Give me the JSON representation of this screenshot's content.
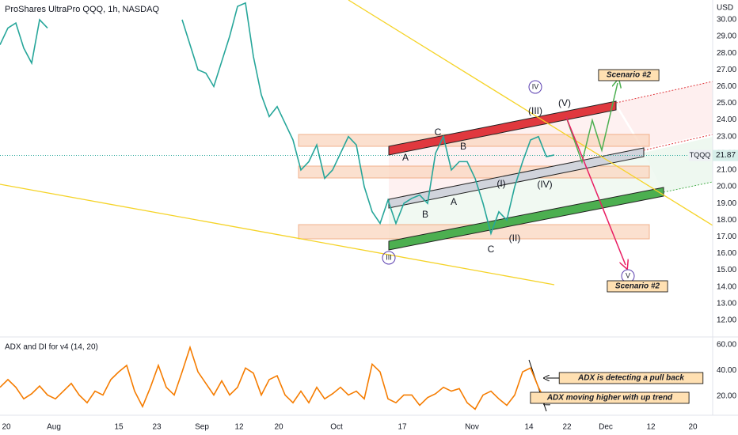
{
  "chart_data": [
    {
      "type": "line",
      "title": "ProShares UltraPro QQQ, 1h, NASDAQ",
      "currency": "USD",
      "symbol": "TQQQ",
      "last_value": 21.87,
      "color": "#26a69a",
      "grid": false,
      "x": [
        0,
        1,
        2,
        3,
        4,
        5,
        6,
        7,
        8,
        9,
        10,
        11,
        12,
        13,
        14,
        15,
        16,
        17,
        18,
        19,
        20,
        21,
        22,
        23,
        24,
        25,
        26,
        27,
        28,
        29,
        30,
        31,
        32,
        33,
        34,
        35,
        36,
        37,
        38,
        39,
        40,
        41,
        42,
        43,
        44,
        45,
        46,
        47,
        48,
        49,
        50,
        51,
        52,
        53,
        54,
        55,
        56,
        57,
        58,
        59,
        60,
        61,
        62,
        63,
        64,
        65,
        66,
        67,
        68,
        69,
        70
      ],
      "values": [
        28.5,
        29.5,
        29.8,
        28.3,
        27.4,
        30.0,
        29.5,
        null,
        null,
        null,
        null,
        null,
        null,
        null,
        null,
        null,
        null,
        null,
        null,
        null,
        null,
        null,
        null,
        30.0,
        28.5,
        27.0,
        26.8,
        26.0,
        27.5,
        29.0,
        30.8,
        31.0,
        27.8,
        25.5,
        24.2,
        24.8,
        23.8,
        22.8,
        21.0,
        21.5,
        22.5,
        20.5,
        21.0,
        22.0,
        23.0,
        22.5,
        20.0,
        18.5,
        17.8,
        19.2,
        17.8,
        19.0,
        19.3,
        19.5,
        19.0,
        22.0,
        23.0,
        21.0,
        21.5,
        21.5,
        20.5,
        19.0,
        17.2,
        18.5,
        18.0,
        20.0,
        21.5,
        22.8,
        23.0,
        21.8,
        21.9
      ],
      "xlim": [
        0,
        90
      ],
      "ylim": [
        11.05,
        31.18
      ],
      "yticks": [
        {
          "value": 12,
          "label": "12.00"
        },
        {
          "value": 13,
          "label": "13.00"
        },
        {
          "value": 14,
          "label": "14.00"
        },
        {
          "value": 15,
          "label": "15.00"
        },
        {
          "value": 16,
          "label": "16.00"
        },
        {
          "value": 17,
          "label": "17.00"
        },
        {
          "value": 18,
          "label": "18.00"
        },
        {
          "value": 19,
          "label": "19.00"
        },
        {
          "value": 20,
          "label": "20.00"
        },
        {
          "value": 21,
          "label": "21.00"
        },
        {
          "value": 22,
          "label": "22.00"
        },
        {
          "value": 23,
          "label": "23.00"
        },
        {
          "value": 24,
          "label": "24.00"
        },
        {
          "value": 25,
          "label": "25.00"
        },
        {
          "value": 26,
          "label": "26.00"
        },
        {
          "value": 27,
          "label": "27.00"
        },
        {
          "value": 28,
          "label": "28.00"
        },
        {
          "value": 29,
          "label": "29.00"
        },
        {
          "value": 30,
          "label": "30.00"
        }
      ],
      "annotations": [
        "IV",
        "(III)",
        "(V)",
        "C",
        "B",
        "A",
        "A",
        "B",
        "C",
        "(I)",
        "(IV)",
        "(II)",
        "III",
        "V",
        "Scenario #2",
        "Scenario #2"
      ]
    },
    {
      "type": "line",
      "title": "ADX and DI for v4 (14, 20)",
      "color": "#f57c00",
      "grid": false,
      "x": [
        0,
        1,
        2,
        3,
        4,
        5,
        6,
        7,
        8,
        9,
        10,
        11,
        12,
        13,
        14,
        15,
        16,
        17,
        18,
        19,
        20,
        21,
        22,
        23,
        24,
        25,
        26,
        27,
        28,
        29,
        30,
        31,
        32,
        33,
        34,
        35,
        36,
        37,
        38,
        39,
        40,
        41,
        42,
        43,
        44,
        45,
        46,
        47,
        48,
        49,
        50,
        51,
        52,
        53,
        54,
        55,
        56,
        57,
        58,
        59,
        60,
        61,
        62,
        63,
        64,
        65,
        66,
        67,
        68,
        69,
        70
      ],
      "values": [
        27,
        33,
        27,
        18,
        22,
        28,
        21,
        18,
        24,
        30,
        21,
        15,
        24,
        21,
        33,
        39,
        44,
        24,
        12,
        27,
        44,
        27,
        21,
        39,
        58,
        39,
        30,
        21,
        32,
        21,
        27,
        42,
        38,
        21,
        33,
        36,
        21,
        15,
        24,
        15,
        27,
        18,
        22,
        27,
        21,
        24,
        18,
        45,
        39,
        18,
        15,
        21,
        21,
        13,
        19,
        22,
        27,
        24,
        26,
        15,
        10,
        21,
        24,
        18,
        13,
        21,
        39,
        42,
        27,
        15,
        18
      ],
      "xlim": [
        0,
        90
      ],
      "ylim": [
        5.3,
        64.9
      ],
      "yticks": [
        {
          "value": 20,
          "label": "20.00"
        },
        {
          "value": 40,
          "label": "40.00"
        },
        {
          "value": 60,
          "label": "60.00"
        }
      ],
      "xticks": [
        {
          "value": 0.8,
          "label": "20"
        },
        {
          "value": 6.8,
          "label": "Aug"
        },
        {
          "value": 15,
          "label": "15"
        },
        {
          "value": 19.8,
          "label": "23"
        },
        {
          "value": 25.5,
          "label": "Sep"
        },
        {
          "value": 30.2,
          "label": "12"
        },
        {
          "value": 35.2,
          "label": "20"
        },
        {
          "value": 42.5,
          "label": "Oct"
        },
        {
          "value": 50.8,
          "label": "17"
        },
        {
          "value": 59.6,
          "label": "Nov"
        },
        {
          "value": 66.8,
          "label": "14"
        },
        {
          "value": 71.6,
          "label": "22"
        },
        {
          "value": 76.5,
          "label": "Dec"
        },
        {
          "value": 82.2,
          "label": "12"
        },
        {
          "value": 87.5,
          "label": "20"
        }
      ],
      "annotations": [
        "ADX is detecting a pull back",
        "ADX moving higher with up trend"
      ]
    }
  ]
}
